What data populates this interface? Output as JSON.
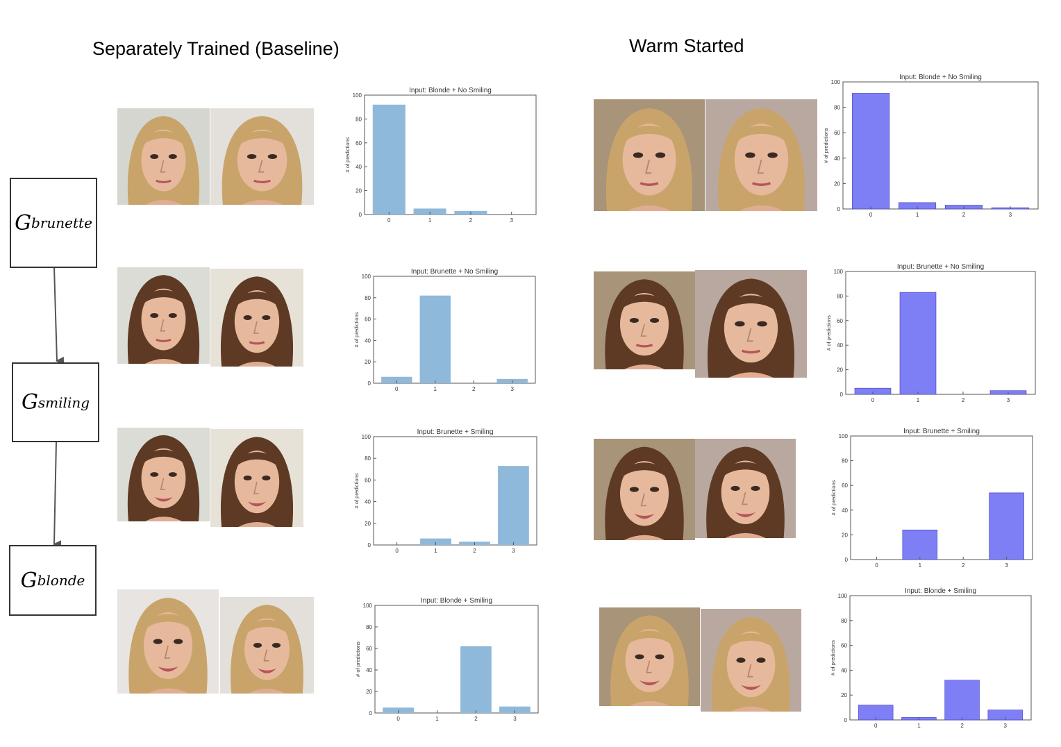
{
  "headings": {
    "baseline": "Separately Trained (Baseline)",
    "warm": "Warm Started"
  },
  "generators": [
    {
      "main": "G",
      "sub": "brunette"
    },
    {
      "main": "G",
      "sub": "smiling"
    },
    {
      "main": "G",
      "sub": "blonde"
    }
  ],
  "colors": {
    "baseline_bar": "#8fb9da",
    "warm_bar": "#7f7ff5",
    "axis": "#555555",
    "blonde_hair": "#c9a46a",
    "brunette_hair": "#5e3a24"
  },
  "chart_data": [
    {
      "panel": "baseline",
      "type": "bar",
      "title": "Input: Blonde + No Smiling",
      "ylabel": "# of predictions",
      "categories": [
        "0",
        "1",
        "2",
        "3"
      ],
      "values": [
        92,
        5,
        3,
        0
      ],
      "ylim": [
        0,
        100
      ],
      "yticks": [
        0,
        20,
        40,
        60,
        80,
        100
      ]
    },
    {
      "panel": "baseline",
      "type": "bar",
      "title": "Input: Brunette + No Smiling",
      "ylabel": "# of predictions",
      "categories": [
        "0",
        "1",
        "2",
        "3"
      ],
      "values": [
        6,
        82,
        0,
        4
      ],
      "ylim": [
        0,
        100
      ],
      "yticks": [
        0,
        20,
        40,
        60,
        80,
        100
      ]
    },
    {
      "panel": "baseline",
      "type": "bar",
      "title": "Input: Brunette + Smiling",
      "ylabel": "# of predictions",
      "categories": [
        "0",
        "1",
        "2",
        "3"
      ],
      "values": [
        0,
        6,
        3,
        73
      ],
      "ylim": [
        0,
        100
      ],
      "yticks": [
        0,
        20,
        40,
        60,
        80,
        100
      ]
    },
    {
      "panel": "baseline",
      "type": "bar",
      "title": "Input: Blonde + Smiling",
      "ylabel": "# of predictions",
      "categories": [
        "0",
        "1",
        "2",
        "3"
      ],
      "values": [
        5,
        0,
        62,
        6
      ],
      "ylim": [
        0,
        100
      ],
      "yticks": [
        0,
        20,
        40,
        60,
        80,
        100
      ]
    },
    {
      "panel": "warm",
      "type": "bar",
      "title": "Input: Blonde + No Smiling",
      "ylabel": "# of predictions",
      "categories": [
        "0",
        "1",
        "2",
        "3"
      ],
      "values": [
        91,
        5,
        3,
        1
      ],
      "ylim": [
        0,
        100
      ],
      "yticks": [
        0,
        20,
        40,
        60,
        80,
        100
      ]
    },
    {
      "panel": "warm",
      "type": "bar",
      "title": "Input: Brunette + No Smiling",
      "ylabel": "# of predictions",
      "categories": [
        "0",
        "1",
        "2",
        "3"
      ],
      "values": [
        5,
        83,
        0,
        3
      ],
      "ylim": [
        0,
        100
      ],
      "yticks": [
        0,
        20,
        40,
        60,
        80,
        100
      ]
    },
    {
      "panel": "warm",
      "type": "bar",
      "title": "Input: Brunette + Smiling",
      "ylabel": "# of predictions",
      "categories": [
        "0",
        "1",
        "2",
        "3"
      ],
      "values": [
        0,
        24,
        0,
        54
      ],
      "ylim": [
        0,
        100
      ],
      "yticks": [
        0,
        20,
        40,
        60,
        80,
        100
      ]
    },
    {
      "panel": "warm",
      "type": "bar",
      "title": "Input: Blonde + Smiling",
      "ylabel": "# of predictions",
      "categories": [
        "0",
        "1",
        "2",
        "3"
      ],
      "values": [
        12,
        2,
        32,
        8
      ],
      "ylim": [
        0,
        100
      ],
      "yticks": [
        0,
        20,
        40,
        60,
        80,
        100
      ]
    }
  ],
  "faces": [
    {
      "hair": "blonde",
      "background": "#d6d6d0",
      "smile": false
    },
    {
      "hair": "blonde",
      "background": "#e3e0dc",
      "smile": false
    },
    {
      "hair": "brunette",
      "background": "#dcdcd6",
      "smile": false
    },
    {
      "hair": "brunette",
      "background": "#e6e2d8",
      "smile": false
    },
    {
      "hair": "brunette",
      "background": "#dcdcd6",
      "smile": true
    },
    {
      "hair": "brunette",
      "background": "#e6e2d8",
      "smile": true
    },
    {
      "hair": "blonde",
      "background": "#e8e4e2",
      "smile": true
    },
    {
      "hair": "blonde",
      "background": "#e3e0dc",
      "smile": true
    },
    {
      "hair": "blonde",
      "background": "#a89478",
      "smile": false
    },
    {
      "hair": "blonde",
      "background": "#b9a8a0",
      "smile": false
    },
    {
      "hair": "brunette",
      "background": "#a89478",
      "smile": false
    },
    {
      "hair": "brunette",
      "background": "#b9a8a0",
      "smile": false
    },
    {
      "hair": "brunette",
      "background": "#a89478",
      "smile": true
    },
    {
      "hair": "brunette",
      "background": "#b9a8a0",
      "smile": true
    },
    {
      "hair": "blonde",
      "background": "#a89478",
      "smile": true
    },
    {
      "hair": "blonde",
      "background": "#b9a8a0",
      "smile": true
    }
  ]
}
